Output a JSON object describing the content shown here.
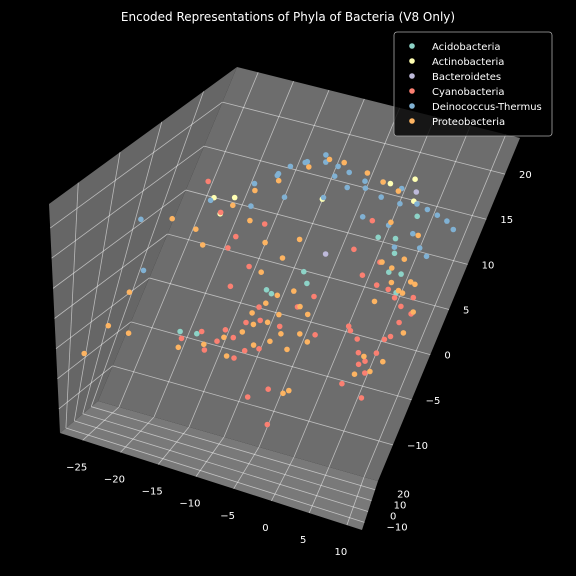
{
  "chart_data": {
    "type": "scatter",
    "projection": "3d",
    "title": "Encoded Representations of Phyla of Bacteria (V8 Only)",
    "xlabel": "",
    "ylabel": "",
    "zlabel": "",
    "xlim": [
      -28,
      12
    ],
    "ylim": [
      -17,
      28
    ],
    "zlim": [
      -14,
      24
    ],
    "x_ticks": [
      -25,
      -20,
      -15,
      -10,
      -5,
      0,
      5,
      10
    ],
    "y_ticks": [
      -10,
      0,
      10,
      20
    ],
    "z_ticks": [
      -10,
      -5,
      0,
      5,
      10,
      15,
      20
    ],
    "x_tick_labels": [
      "−25",
      "−20",
      "−15",
      "−10",
      "−5",
      "0",
      "5",
      "10"
    ],
    "y_tick_labels": [
      "−10",
      "0",
      "10",
      "20"
    ],
    "z_tick_labels": [
      "−10",
      "−5",
      "0",
      "5",
      "10",
      "15",
      "20"
    ],
    "grid": true,
    "background": "#000000",
    "pane_color": "#808080",
    "legend_position": "top-right",
    "series": [
      {
        "name": "Acidobacteria",
        "color": "#8dd3c7",
        "points": [
          [
            -17,
            3,
            1
          ],
          [
            -15,
            4,
            1
          ],
          [
            -7,
            3,
            9
          ],
          [
            -6,
            2,
            9
          ],
          [
            -3,
            4,
            12
          ],
          [
            -2,
            3,
            11
          ],
          [
            2,
            16,
            14
          ],
          [
            4,
            17,
            14
          ],
          [
            5,
            15,
            13
          ],
          [
            6,
            18,
            10
          ],
          [
            7,
            14,
            9
          ],
          [
            6,
            11,
            12
          ],
          [
            5,
            20,
            16
          ]
        ]
      },
      {
        "name": "Actinobacteria",
        "color": "#ffffb3",
        "points": [
          [
            -18,
            8,
            17
          ],
          [
            -16,
            6,
            16
          ],
          [
            -15,
            7,
            18
          ],
          [
            -3,
            5,
            21
          ],
          [
            2,
            14,
            21
          ],
          [
            4,
            17,
            21
          ],
          [
            6,
            13,
            20
          ]
        ]
      },
      {
        "name": "Bacteroidetes",
        "color": "#bebada",
        "points": [
          [
            -3,
            12,
            12
          ],
          [
            5,
            16,
            20
          ]
        ]
      },
      {
        "name": "Cyanobacteria",
        "color": "#fb8072",
        "points": [
          [
            -16,
            0,
            1
          ],
          [
            -14,
            2,
            2
          ],
          [
            -13,
            1,
            0
          ],
          [
            -12,
            3,
            1
          ],
          [
            -11,
            2,
            3
          ],
          [
            -10,
            3,
            2
          ],
          [
            -9,
            1,
            0
          ],
          [
            -9,
            4,
            4
          ],
          [
            -8,
            2,
            1
          ],
          [
            -7,
            3,
            5
          ],
          [
            -6,
            1,
            2
          ],
          [
            -8,
            5,
            6
          ],
          [
            -12,
            4,
            8
          ],
          [
            -11,
            7,
            10
          ],
          [
            -5,
            6,
            4
          ],
          [
            -4,
            9,
            6
          ],
          [
            -14,
            6,
            12
          ],
          [
            -13,
            5,
            14
          ],
          [
            -20,
            10,
            18
          ],
          [
            -17,
            9,
            15
          ],
          [
            -10,
            6,
            16
          ],
          [
            -4,
            2,
            -3
          ],
          [
            -3,
            0,
            -7
          ],
          [
            -6,
            -1,
            -4
          ],
          [
            3,
            12,
            4
          ],
          [
            3,
            10,
            5
          ],
          [
            4,
            13,
            3
          ],
          [
            5,
            11,
            2
          ],
          [
            5,
            14,
            0
          ],
          [
            6,
            12,
            1
          ],
          [
            6,
            15,
            -1
          ],
          [
            7,
            13,
            2
          ],
          [
            7,
            16,
            3
          ],
          [
            8,
            14,
            4
          ],
          [
            8,
            17,
            5
          ],
          [
            4,
            15,
            9
          ],
          [
            5,
            18,
            8
          ],
          [
            6,
            19,
            7
          ],
          [
            7,
            20,
            6
          ],
          [
            3,
            17,
            11
          ],
          [
            2,
            14,
            10
          ],
          [
            4,
            11,
            -2
          ],
          [
            7,
            11,
            -3
          ],
          [
            1,
            10,
            14
          ],
          [
            -2,
            8,
            8
          ],
          [
            -1,
            10,
            3
          ],
          [
            9,
            18,
            6
          ],
          [
            8,
            21,
            7
          ],
          [
            0,
            18,
            15
          ]
        ]
      },
      {
        "name": "Deinococcus-Thermus",
        "color": "#80b1d3",
        "points": [
          [
            -23,
            2,
            8
          ],
          [
            -26,
            6,
            13
          ],
          [
            -18,
            7,
            17
          ],
          [
            -14,
            10,
            19
          ],
          [
            -12,
            12,
            20
          ],
          [
            -11,
            9,
            21
          ],
          [
            -10,
            10,
            22
          ],
          [
            -9,
            12,
            22
          ],
          [
            -8,
            10,
            23
          ],
          [
            -7,
            13,
            23
          ],
          [
            -6,
            11,
            23
          ],
          [
            -5,
            13,
            22
          ],
          [
            -4,
            10,
            22
          ],
          [
            -3,
            12,
            22
          ],
          [
            -2,
            10,
            21
          ],
          [
            -1,
            13,
            21
          ],
          [
            0,
            11,
            21
          ],
          [
            1,
            14,
            21
          ],
          [
            2,
            12,
            20
          ],
          [
            3,
            16,
            20
          ],
          [
            4,
            14,
            19
          ],
          [
            5,
            18,
            18
          ],
          [
            6,
            20,
            17
          ],
          [
            7,
            22,
            16
          ],
          [
            8,
            24,
            15
          ],
          [
            9,
            25,
            14
          ],
          [
            6,
            17,
            15
          ],
          [
            7,
            19,
            13
          ],
          [
            5,
            14,
            14
          ],
          [
            -13,
            8,
            17
          ],
          [
            -9,
            8,
            19
          ],
          [
            -4,
            8,
            20
          ],
          [
            1,
            10,
            18
          ],
          [
            4,
            12,
            17
          ],
          [
            8,
            20,
            12
          ]
        ]
      },
      {
        "name": "Proteobacteria",
        "color": "#fdb462",
        "points": [
          [
            -27,
            -6,
            -3
          ],
          [
            -25,
            -3,
            1
          ],
          [
            -22,
            -4,
            1
          ],
          [
            -24,
            1,
            5
          ],
          [
            -16,
            -1,
            0
          ],
          [
            -13,
            0,
            1
          ],
          [
            -11,
            2,
            2
          ],
          [
            -10,
            1,
            0
          ],
          [
            -9,
            3,
            3
          ],
          [
            -8,
            2,
            6
          ],
          [
            -8,
            4,
            4
          ],
          [
            -7,
            4,
            7
          ],
          [
            -7,
            2,
            2
          ],
          [
            -6,
            3,
            5
          ],
          [
            -6,
            5,
            8
          ],
          [
            -5,
            4,
            6
          ],
          [
            -5,
            2,
            3
          ],
          [
            -4,
            5,
            9
          ],
          [
            -4,
            3,
            4
          ],
          [
            -3,
            6,
            7
          ],
          [
            -3,
            4,
            2
          ],
          [
            -2,
            5,
            4
          ],
          [
            -2,
            7,
            6
          ],
          [
            -1,
            6,
            3
          ],
          [
            -9,
            6,
            10
          ],
          [
            -7,
            7,
            12
          ],
          [
            -6,
            9,
            14
          ],
          [
            -10,
            8,
            13
          ],
          [
            -12,
            6,
            16
          ],
          [
            -15,
            7,
            17
          ],
          [
            -13,
            8,
            19
          ],
          [
            -11,
            10,
            20
          ],
          [
            -8,
            11,
            22
          ],
          [
            -6,
            12,
            23
          ],
          [
            -4,
            12,
            23
          ],
          [
            -1,
            13,
            22
          ],
          [
            1,
            14,
            21
          ],
          [
            3,
            15,
            20
          ],
          [
            -19,
            7,
            13
          ],
          [
            -22,
            6,
            14
          ],
          [
            -17,
            5,
            12
          ],
          [
            -2,
            2,
            -3
          ],
          [
            -1,
            0,
            -2
          ],
          [
            4,
            14,
            12
          ],
          [
            5,
            16,
            11
          ],
          [
            6,
            14,
            10
          ],
          [
            6,
            17,
            12
          ],
          [
            7,
            15,
            9
          ],
          [
            7,
            18,
            8
          ],
          [
            8,
            16,
            10
          ],
          [
            8,
            19,
            9
          ],
          [
            5,
            12,
            8
          ],
          [
            6,
            10,
            2
          ],
          [
            5,
            13,
            -1
          ],
          [
            7,
            12,
            0
          ],
          [
            8,
            14,
            1
          ],
          [
            9,
            17,
            4
          ],
          [
            9,
            19,
            6
          ],
          [
            3,
            16,
            16
          ],
          [
            6,
            20,
            14
          ]
        ]
      }
    ]
  }
}
